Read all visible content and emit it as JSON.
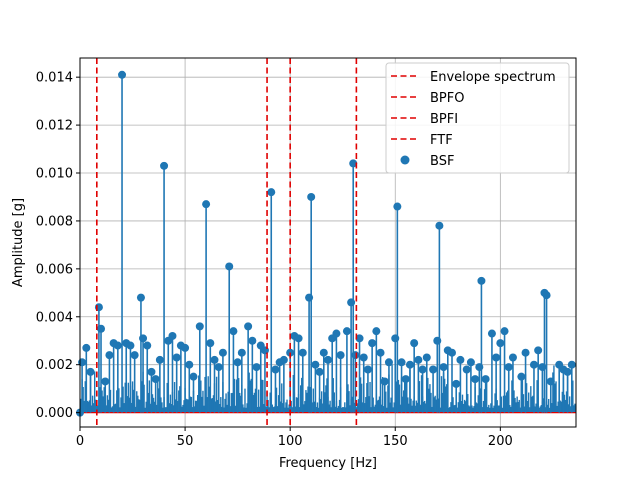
{
  "chart_data": {
    "type": "stem",
    "xlabel": "Frequency [Hz]",
    "ylabel": "Amplitude [g]",
    "xlim": [
      0,
      236
    ],
    "ylim": [
      -0.0006,
      0.0148
    ],
    "xticks": [
      0,
      50,
      100,
      150,
      200
    ],
    "yticks": [
      0.0,
      0.002,
      0.004,
      0.006,
      0.008,
      0.01,
      0.012,
      0.014
    ],
    "ytick_labels": [
      "0.000",
      "0.002",
      "0.004",
      "0.006",
      "0.008",
      "0.010",
      "0.012",
      "0.014"
    ],
    "xtick_labels": [
      "0",
      "50",
      "100",
      "150",
      "200"
    ],
    "grid": true,
    "legend_position": "top-right",
    "colors": {
      "stem": "#1f77b4",
      "vline": "#e00000",
      "grid": "#b0b0b0"
    },
    "vlines": [
      {
        "label": "Envelope spectrum",
        "x": 8.0
      },
      {
        "label": "BPFO",
        "x": 89.0
      },
      {
        "label": "BPFI",
        "x": 100.0
      },
      {
        "label": "FTF",
        "x": 131.5
      }
    ],
    "legend": [
      {
        "label": "Envelope spectrum",
        "style": "dashed-line"
      },
      {
        "label": "BPFO",
        "style": "dashed-line"
      },
      {
        "label": "BPFI",
        "style": "dashed-line"
      },
      {
        "label": "FTF",
        "style": "dashed-line"
      },
      {
        "label": "BSF",
        "style": "marker"
      }
    ],
    "series": [
      {
        "name": "BSF",
        "x": [
          1,
          3,
          5,
          9,
          10,
          12,
          14,
          16,
          18,
          20,
          22,
          24,
          26,
          29,
          30,
          32,
          34,
          36,
          38,
          40,
          42,
          44,
          46,
          48,
          50,
          52,
          54,
          57,
          60,
          62,
          64,
          66,
          68,
          71,
          73,
          75,
          77,
          80,
          82,
          84,
          86,
          88,
          91,
          93,
          95,
          97,
          100,
          102,
          104,
          106,
          109,
          110,
          112,
          114,
          116,
          118,
          120,
          122,
          124,
          127,
          129,
          130,
          131,
          133,
          135,
          137,
          139,
          141,
          143,
          145,
          147,
          150,
          151,
          153,
          155,
          157,
          159,
          161,
          163,
          165,
          168,
          170,
          171,
          173,
          175,
          177,
          179,
          181,
          184,
          186,
          188,
          190,
          191,
          193,
          196,
          198,
          200,
          202,
          204,
          206,
          210,
          212,
          216,
          218,
          220,
          221,
          222,
          224,
          228,
          230,
          232,
          234
        ],
        "y": [
          0.0021,
          0.0027,
          0.0017,
          0.0044,
          0.0035,
          0.0013,
          0.0024,
          0.0029,
          0.0028,
          0.0141,
          0.0029,
          0.0028,
          0.0024,
          0.0048,
          0.0031,
          0.0028,
          0.0017,
          0.0014,
          0.0022,
          0.0103,
          0.003,
          0.0032,
          0.0023,
          0.0028,
          0.0027,
          0.002,
          0.0015,
          0.0036,
          0.0087,
          0.0029,
          0.0022,
          0.0019,
          0.0025,
          0.0061,
          0.0034,
          0.0021,
          0.0025,
          0.0036,
          0.003,
          0.0019,
          0.0028,
          0.0026,
          0.0092,
          0.0018,
          0.0021,
          0.0022,
          0.0025,
          0.0032,
          0.0031,
          0.0025,
          0.0048,
          0.009,
          0.002,
          0.0017,
          0.0025,
          0.0022,
          0.0031,
          0.0033,
          0.0024,
          0.0034,
          0.0046,
          0.0104,
          0.0024,
          0.0031,
          0.0023,
          0.0018,
          0.0029,
          0.0034,
          0.0025,
          0.0013,
          0.0021,
          0.0031,
          0.0086,
          0.0021,
          0.0014,
          0.002,
          0.0029,
          0.0022,
          0.0018,
          0.0023,
          0.0018,
          0.003,
          0.0078,
          0.0019,
          0.0026,
          0.0025,
          0.0012,
          0.0022,
          0.0018,
          0.0021,
          0.0014,
          0.0019,
          0.0055,
          0.0014,
          0.0033,
          0.0023,
          0.0029,
          0.0034,
          0.0019,
          0.0023,
          0.0015,
          0.0025,
          0.002,
          0.0026,
          0.0019,
          0.005,
          0.0049,
          0.0013,
          0.002,
          0.0018,
          0.0017,
          0.002
        ]
      }
    ]
  }
}
